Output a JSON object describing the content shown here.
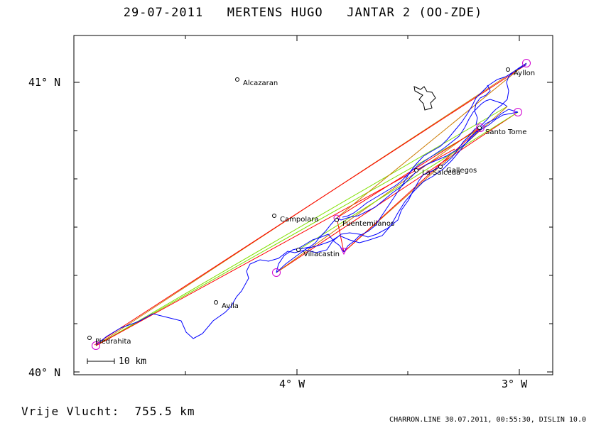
{
  "title": "29-07-2011   MERTENS HUGO   JANTAR 2 (OO-ZDE)",
  "axes": {
    "lat_labels": [
      "41° N",
      "40° N"
    ],
    "lon_labels": [
      "4° W",
      "3° W"
    ]
  },
  "scale_label": "10 km",
  "places": [
    {
      "name": "Alcazaran"
    },
    {
      "name": "Ayllon"
    },
    {
      "name": "Santo Tome"
    },
    {
      "name": "Gallegos"
    },
    {
      "name": "La Salceda"
    },
    {
      "name": "Campolara"
    },
    {
      "name": "Fuentemilanos"
    },
    {
      "name": "Villacastin"
    },
    {
      "name": "Avila"
    },
    {
      "name": "Piedrahita"
    }
  ],
  "colors": {
    "track": "#0000ff",
    "leg_red": "#ff0000",
    "leg_green": "#7fe000",
    "leg_orange": "#cc7a00",
    "turnpoint": "#d000d0",
    "ink": "#000000"
  },
  "footer": {
    "distance": "Vrije Vlucht:  755.5 km",
    "credit": "CHARRON.LINE 30.07.2011, 00:55:30, DISLIN 10.0"
  }
}
